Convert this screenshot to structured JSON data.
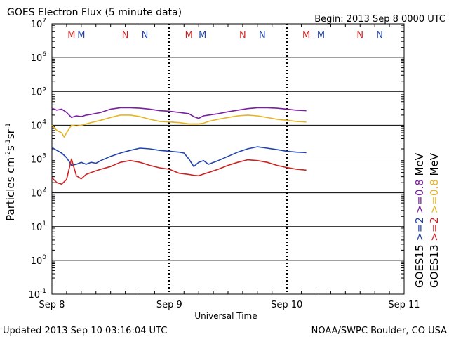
{
  "header": {
    "title": "GOES Electron Flux (5 minute data)",
    "begin": "Begin: 2013 Sep 8 0000 UTC"
  },
  "footer": {
    "updated": "Updated 2013 Sep 10 03:16:04 UTC",
    "source": "NOAA/SWPC Boulder, CO USA"
  },
  "chart_data": {
    "type": "line",
    "title": "GOES Electron Flux (5 minute data)",
    "xlabel": "Universal Time",
    "ylabel_parts": {
      "a": "Particles cm",
      "b": "-2",
      "c": "s",
      "d": "-1",
      "e": "sr",
      "f": "-1"
    },
    "yscale": "log",
    "ylim": [
      0.1,
      10000000
    ],
    "xlim": [
      0,
      72
    ],
    "x_units": "hours since Sep 8 0000 UTC",
    "x_ticks": [
      {
        "x": 0,
        "label": "Sep 8"
      },
      {
        "x": 24,
        "label": "Sep 9"
      },
      {
        "x": 48,
        "label": "Sep 10"
      },
      {
        "x": 72,
        "label": "Sep 11"
      }
    ],
    "y_ticks": [
      {
        "v": 0.1,
        "base": "10",
        "exp": "-1"
      },
      {
        "v": 1,
        "base": "10",
        "exp": "0"
      },
      {
        "v": 10,
        "base": "10",
        "exp": "1"
      },
      {
        "v": 100,
        "base": "10",
        "exp": "2"
      },
      {
        "v": 1000,
        "base": "10",
        "exp": "3"
      },
      {
        "v": 10000,
        "base": "10",
        "exp": "4"
      },
      {
        "v": 100000,
        "base": "10",
        "exp": "5"
      },
      {
        "v": 1000000,
        "base": "10",
        "exp": "6"
      },
      {
        "v": 10000000,
        "base": "10",
        "exp": "7"
      }
    ],
    "threshold": {
      "value": 1000,
      "style": "dashed"
    },
    "midnight_noon_markers": [
      {
        "x": 4,
        "label": "M",
        "color": "#cc2222"
      },
      {
        "x": 6,
        "label": "M",
        "color": "#2244aa"
      },
      {
        "x": 15,
        "label": "N",
        "color": "#cc2222"
      },
      {
        "x": 19,
        "label": "N",
        "color": "#2244aa"
      },
      {
        "x": 28,
        "label": "M",
        "color": "#cc2222"
      },
      {
        "x": 30.8,
        "label": "M",
        "color": "#2244aa"
      },
      {
        "x": 39,
        "label": "N",
        "color": "#cc2222"
      },
      {
        "x": 43,
        "label": "N",
        "color": "#2244aa"
      },
      {
        "x": 52,
        "label": "M",
        "color": "#cc2222"
      },
      {
        "x": 55,
        "label": "M",
        "color": "#2244aa"
      },
      {
        "x": 63,
        "label": "N",
        "color": "#cc2222"
      },
      {
        "x": 67,
        "label": "N",
        "color": "#2244aa"
      }
    ],
    "legend": {
      "placement": "right",
      "columns": [
        [
          {
            "text": "GOES15",
            "color": "#000000"
          },
          {
            "text": ">=2",
            "color": "#2244aa"
          },
          {
            "text": ">=0.8",
            "color": "#7a1f9e"
          },
          {
            "text": "MeV",
            "color": "#000000"
          }
        ],
        [
          {
            "text": "GOES13",
            "color": "#000000"
          },
          {
            "text": ">=2",
            "color": "#cc2222"
          },
          {
            "text": ">=0.8",
            "color": "#e6b422"
          },
          {
            "text": "MeV",
            "color": "#000000"
          }
        ]
      ]
    },
    "series": [
      {
        "name": "GOES15 >=0.8 MeV",
        "color": "#7a1f9e",
        "points": [
          [
            0,
            32000
          ],
          [
            1,
            28000
          ],
          [
            2,
            30000
          ],
          [
            3,
            24000
          ],
          [
            4,
            17000
          ],
          [
            5,
            19000
          ],
          [
            6,
            18000
          ],
          [
            7,
            20000
          ],
          [
            8,
            21000
          ],
          [
            10,
            24000
          ],
          [
            12,
            30000
          ],
          [
            14,
            33000
          ],
          [
            16,
            33000
          ],
          [
            18,
            32000
          ],
          [
            20,
            30000
          ],
          [
            22,
            27000
          ],
          [
            24,
            26000
          ],
          [
            26,
            24000
          ],
          [
            28,
            22000
          ],
          [
            29,
            18000
          ],
          [
            30,
            16000
          ],
          [
            31,
            19000
          ],
          [
            32,
            20000
          ],
          [
            34,
            22000
          ],
          [
            36,
            25000
          ],
          [
            38,
            28000
          ],
          [
            40,
            31000
          ],
          [
            42,
            33000
          ],
          [
            44,
            33000
          ],
          [
            46,
            32000
          ],
          [
            48,
            30000
          ],
          [
            50,
            28000
          ],
          [
            52,
            27000
          ]
        ]
      },
      {
        "name": "GOES13 >=0.8 MeV",
        "color": "#e6b422",
        "points": [
          [
            0,
            10000
          ],
          [
            1,
            7000
          ],
          [
            2,
            6000
          ],
          [
            2.5,
            4500
          ],
          [
            3,
            6000
          ],
          [
            4,
            10000
          ],
          [
            5,
            9500
          ],
          [
            6,
            10000
          ],
          [
            8,
            12000
          ],
          [
            10,
            14000
          ],
          [
            12,
            17000
          ],
          [
            14,
            20000
          ],
          [
            16,
            20000
          ],
          [
            18,
            18000
          ],
          [
            20,
            15000
          ],
          [
            22,
            13000
          ],
          [
            24,
            12500
          ],
          [
            26,
            12000
          ],
          [
            28,
            11000
          ],
          [
            30,
            11000
          ],
          [
            31,
            11500
          ],
          [
            32,
            13000
          ],
          [
            34,
            15000
          ],
          [
            36,
            17000
          ],
          [
            38,
            19000
          ],
          [
            40,
            20000
          ],
          [
            42,
            19000
          ],
          [
            44,
            17000
          ],
          [
            46,
            15000
          ],
          [
            48,
            14000
          ],
          [
            50,
            13000
          ],
          [
            52,
            12500
          ]
        ]
      },
      {
        "name": "GOES15 >=2 MeV",
        "color": "#2244aa",
        "points": [
          [
            0,
            2200
          ],
          [
            1,
            1800
          ],
          [
            2,
            1500
          ],
          [
            3,
            1100
          ],
          [
            4,
            650
          ],
          [
            5,
            700
          ],
          [
            6,
            800
          ],
          [
            7,
            700
          ],
          [
            8,
            800
          ],
          [
            9,
            750
          ],
          [
            10,
            900
          ],
          [
            12,
            1200
          ],
          [
            14,
            1500
          ],
          [
            16,
            1800
          ],
          [
            18,
            2100
          ],
          [
            20,
            2000
          ],
          [
            22,
            1800
          ],
          [
            24,
            1700
          ],
          [
            26,
            1600
          ],
          [
            27,
            1500
          ],
          [
            28,
            1000
          ],
          [
            29,
            600
          ],
          [
            30,
            800
          ],
          [
            31,
            900
          ],
          [
            32,
            700
          ],
          [
            34,
            900
          ],
          [
            36,
            1200
          ],
          [
            38,
            1600
          ],
          [
            40,
            2000
          ],
          [
            42,
            2300
          ],
          [
            44,
            2100
          ],
          [
            46,
            1900
          ],
          [
            48,
            1700
          ],
          [
            50,
            1600
          ],
          [
            52,
            1550
          ]
        ]
      },
      {
        "name": "GOES13 >=2 MeV",
        "color": "#cc2222",
        "points": [
          [
            0,
            280
          ],
          [
            1,
            200
          ],
          [
            2,
            180
          ],
          [
            3,
            250
          ],
          [
            4,
            1000
          ],
          [
            5,
            320
          ],
          [
            6,
            260
          ],
          [
            7,
            350
          ],
          [
            8,
            400
          ],
          [
            9,
            450
          ],
          [
            10,
            500
          ],
          [
            12,
            600
          ],
          [
            14,
            800
          ],
          [
            16,
            900
          ],
          [
            18,
            800
          ],
          [
            20,
            650
          ],
          [
            22,
            550
          ],
          [
            24,
            500
          ],
          [
            26,
            380
          ],
          [
            28,
            350
          ],
          [
            29,
            330
          ],
          [
            30,
            320
          ],
          [
            31,
            360
          ],
          [
            32,
            400
          ],
          [
            34,
            500
          ],
          [
            36,
            650
          ],
          [
            38,
            800
          ],
          [
            40,
            950
          ],
          [
            42,
            900
          ],
          [
            44,
            800
          ],
          [
            46,
            650
          ],
          [
            48,
            560
          ],
          [
            50,
            500
          ],
          [
            52,
            470
          ]
        ]
      }
    ]
  }
}
